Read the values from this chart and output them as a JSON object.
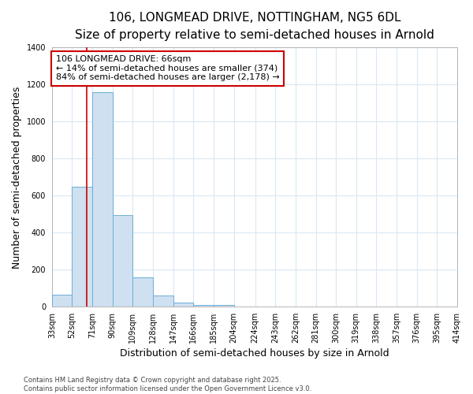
{
  "title_line1": "106, LONGMEAD DRIVE, NOTTINGHAM, NG5 6DL",
  "title_line2": "Size of property relative to semi-detached houses in Arnold",
  "xlabel": "Distribution of semi-detached houses by size in Arnold",
  "ylabel": "Number of semi-detached properties",
  "bar_edges": [
    33,
    52,
    71,
    90,
    109,
    128,
    147,
    166,
    185,
    204,
    224,
    243,
    262,
    281,
    300,
    319,
    338,
    357,
    376,
    395,
    414
  ],
  "bar_heights": [
    65,
    650,
    1160,
    495,
    160,
    60,
    25,
    10,
    10,
    0,
    0,
    0,
    0,
    0,
    0,
    0,
    0,
    0,
    0,
    0
  ],
  "bar_color": "#cfe0f0",
  "bar_edge_color": "#6baed6",
  "red_line_x": 66,
  "annotation_line1": "106 LONGMEAD DRIVE: 66sqm",
  "annotation_line2": "← 14% of semi-detached houses are smaller (374)",
  "annotation_line3": "84% of semi-detached houses are larger (2,178) →",
  "annotation_box_color": "#ffffff",
  "annotation_box_edge": "#cc0000",
  "ylim": [
    0,
    1400
  ],
  "yticks": [
    0,
    200,
    400,
    600,
    800,
    1000,
    1200,
    1400
  ],
  "background_color": "#ffffff",
  "grid_color": "#d8e8f5",
  "footnote": "Contains HM Land Registry data © Crown copyright and database right 2025.\nContains public sector information licensed under the Open Government Licence v3.0.",
  "title_fontsize": 11,
  "subtitle_fontsize": 9.5,
  "tick_fontsize": 7,
  "label_fontsize": 9,
  "annotation_fontsize": 8
}
